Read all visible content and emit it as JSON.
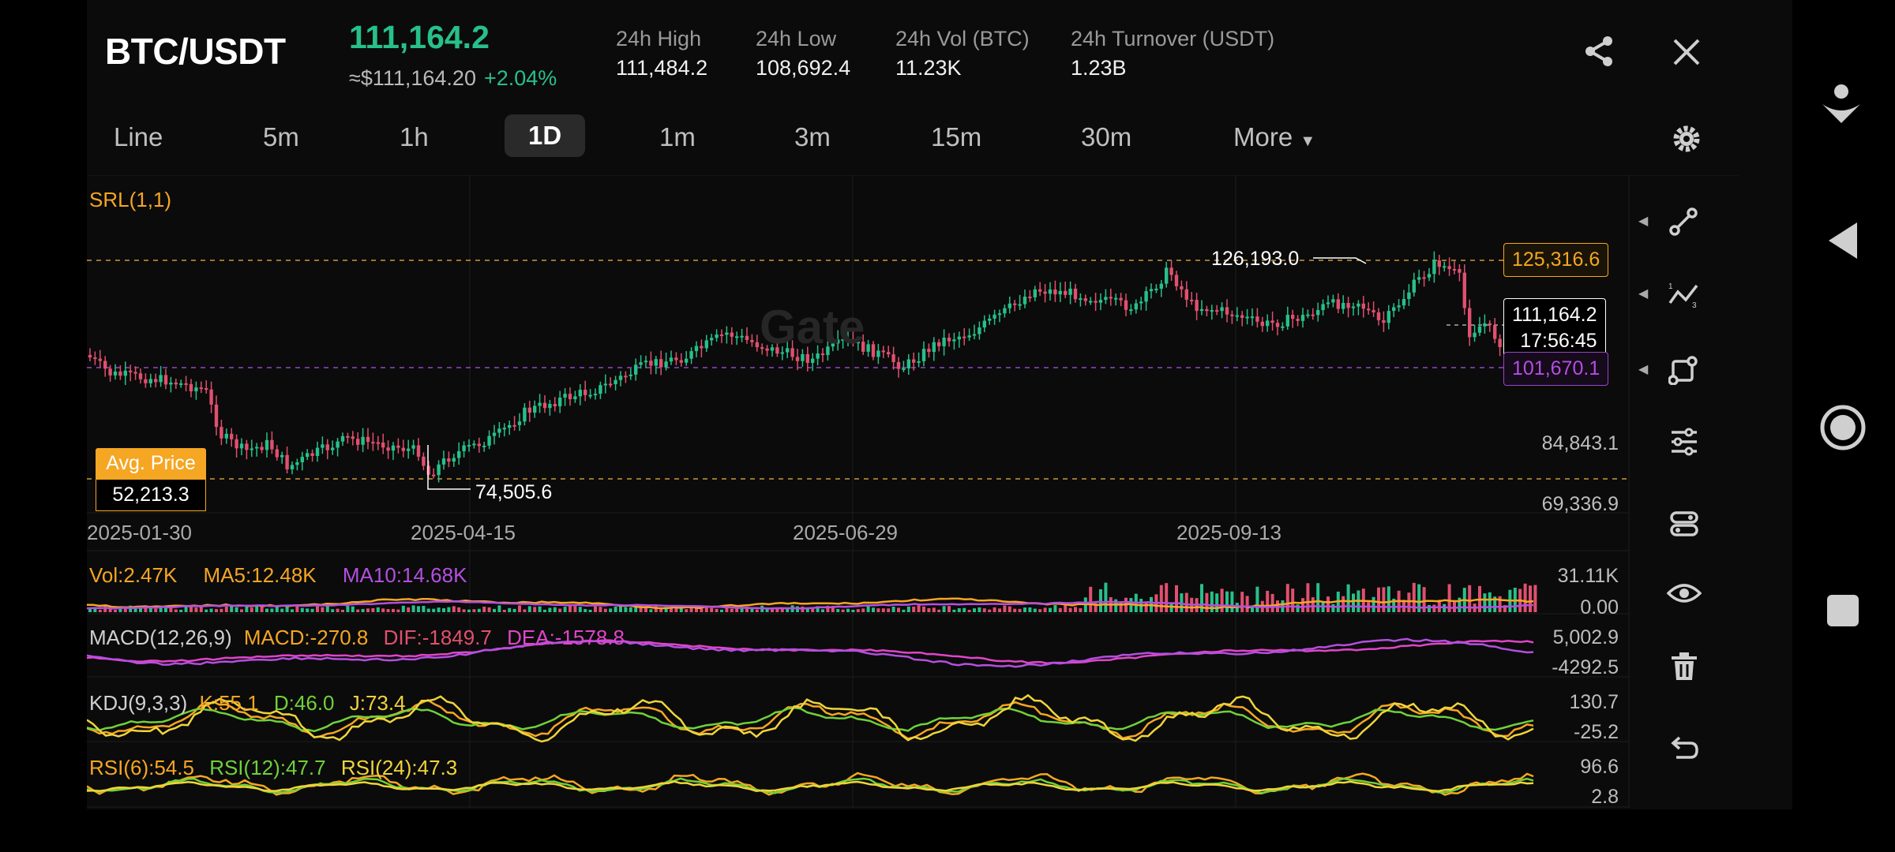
{
  "header": {
    "pair": "BTC/USDT",
    "last_price": "111,164.2",
    "approx_usd": "≈$111,164.20",
    "change_pct": "+2.04%",
    "stats": [
      {
        "label": "24h High",
        "value": "111,484.2"
      },
      {
        "label": "24h Low",
        "value": "108,692.4"
      },
      {
        "label": "24h Vol (BTC)",
        "value": "11.23K"
      },
      {
        "label": "24h Turnover (USDT)",
        "value": "1.23B"
      }
    ]
  },
  "timeframes": {
    "items": [
      "Line",
      "5m",
      "1h",
      "1D",
      "1m",
      "3m",
      "15m",
      "30m"
    ],
    "active": "1D",
    "more_label": "More"
  },
  "main_chart": {
    "indicator_label": "SRL(1,1)",
    "watermark": "Gate",
    "high_marker": "126,193.0",
    "low_marker": "74,505.6",
    "upper_line_value": "125,316.6",
    "lower_line_value": "101,670.1",
    "current_price": "111,164.2",
    "countdown": "17:56:45",
    "avg_price_label": "Avg. Price",
    "avg_price_value": "52,213.3",
    "y_ticks": [
      "84,843.1",
      "69,336.9"
    ],
    "x_ticks": [
      "2025-01-30",
      "2025-04-15",
      "2025-06-29",
      "2025-09-13"
    ]
  },
  "volume": {
    "vol_label": "Vol:2.47K",
    "ma5_label": "MA5:12.48K",
    "ma10_label": "MA10:14.68K",
    "y_max": "31.11K",
    "y_min": "0.00"
  },
  "macd": {
    "name": "MACD(12,26,9)",
    "macd_label": "MACD:-270.8",
    "dif_label": "DIF:-1849.7",
    "dea_label": "DEA:-1578.8",
    "y_max": "5,002.9",
    "y_min": "-4292.5"
  },
  "kdj": {
    "name": "KDJ(9,3,3)",
    "k_label": "K:55.1",
    "d_label": "D:46.0",
    "j_label": "J:73.4",
    "y_max": "130.7",
    "y_min": "-25.2"
  },
  "rsi": {
    "rsi6_label": "RSI(6):54.5",
    "rsi12_label": "RSI(12):47.7",
    "rsi24_label": "RSI(24):47.3",
    "y_max": "96.6",
    "y_min": "2.8"
  },
  "tools": [
    "draw-line-icon",
    "trend-tool-icon",
    "shape-tool-icon",
    "indicator-settings-icon",
    "layout-icon",
    "visibility-icon",
    "delete-icon",
    "undo-icon"
  ],
  "colors": {
    "up": "#27c08a",
    "down": "#e0506e",
    "accent_orange": "#f5a623",
    "purple": "#b44fe0",
    "magenta": "#e045c8"
  }
}
